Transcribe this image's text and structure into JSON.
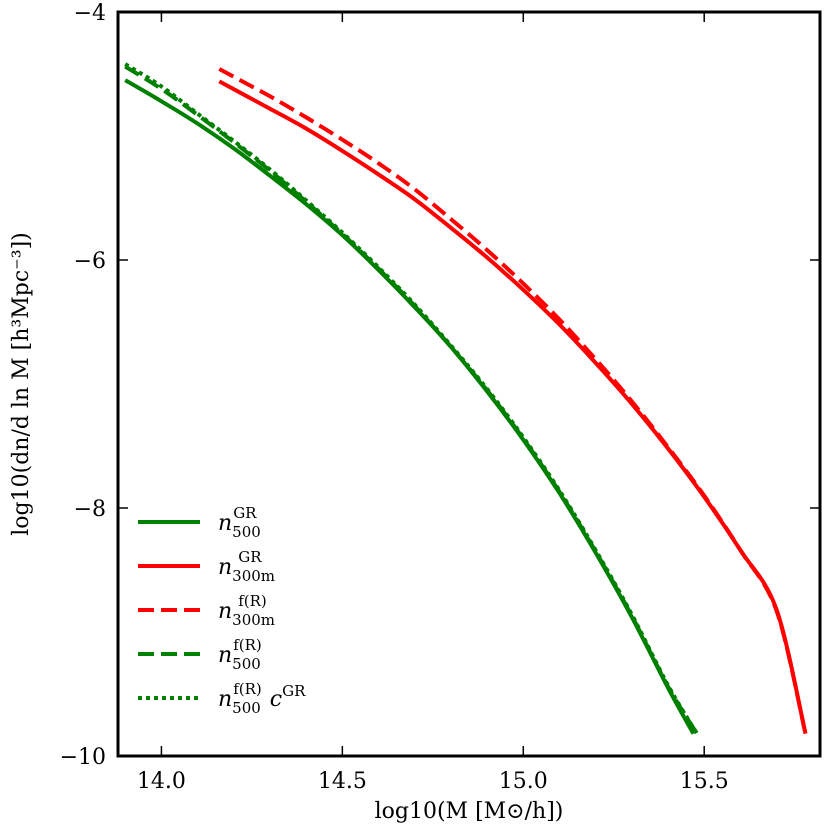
{
  "chart_data": {
    "type": "line",
    "title": "",
    "xlabel": "log10(M [M⊙/h])",
    "ylabel": "log10(dn/d ln M [h³Mpc⁻³])",
    "xlim": [
      13.88,
      15.82
    ],
    "ylim": [
      -10,
      -4
    ],
    "xticks": [
      14.0,
      14.5,
      15.0,
      15.5
    ],
    "xtick_labels": [
      "14.0",
      "14.5",
      "15.0",
      "15.5"
    ],
    "yticks": [
      -10,
      -8,
      -6,
      -4
    ],
    "ytick_labels": [
      "−10",
      "−8",
      "−6",
      "−4"
    ],
    "grid": false,
    "legend_position": "lower-left",
    "series": [
      {
        "name": "n_500^GR",
        "legend_base": "n",
        "legend_sup": "GR",
        "legend_sub": "500",
        "legend_tail": "",
        "legend_tail_sup": "",
        "color": "#008000",
        "dash": "solid",
        "x": [
          13.9,
          14.0,
          14.1,
          14.2,
          14.3,
          14.4,
          14.5,
          14.6,
          14.7,
          14.8,
          14.9,
          15.0,
          15.1,
          15.2,
          15.3,
          15.4,
          15.47
        ],
        "y": [
          -4.55,
          -4.72,
          -4.9,
          -5.1,
          -5.32,
          -5.55,
          -5.8,
          -6.08,
          -6.38,
          -6.7,
          -7.06,
          -7.45,
          -7.88,
          -8.36,
          -8.88,
          -9.45,
          -9.82
        ]
      },
      {
        "name": "n_300m^GR",
        "legend_base": "n",
        "legend_sup": "GR",
        "legend_sub": "300m",
        "legend_tail": "",
        "legend_tail_sup": "",
        "color": "#ff0000",
        "dash": "solid",
        "x": [
          14.16,
          14.3,
          14.4,
          14.5,
          14.6,
          14.7,
          14.8,
          14.9,
          15.0,
          15.1,
          15.2,
          15.3,
          15.4,
          15.5,
          15.6,
          15.7,
          15.78
        ],
        "y": [
          -4.56,
          -4.78,
          -4.94,
          -5.12,
          -5.31,
          -5.51,
          -5.74,
          -5.98,
          -6.24,
          -6.52,
          -6.83,
          -7.16,
          -7.52,
          -7.91,
          -8.34,
          -8.82,
          -9.82
        ]
      },
      {
        "name": "n_300m^f(R)",
        "legend_base": "n",
        "legend_sup": "f(R)",
        "legend_sub": "300m",
        "legend_tail": "",
        "legend_tail_sup": "",
        "color": "#ff0000",
        "dash": "dashed",
        "x": [
          14.16,
          14.3,
          14.4,
          14.5,
          14.6,
          14.7,
          14.8,
          14.9,
          15.0,
          15.1,
          15.2,
          15.3,
          15.4,
          15.5,
          15.6,
          15.7,
          15.78
        ],
        "y": [
          -4.46,
          -4.68,
          -4.85,
          -5.03,
          -5.22,
          -5.43,
          -5.67,
          -5.92,
          -6.19,
          -6.48,
          -6.8,
          -7.14,
          -7.51,
          -7.9,
          -8.34,
          -8.83,
          -9.82
        ]
      },
      {
        "name": "n_500^f(R)",
        "legend_base": "n",
        "legend_sup": "f(R)",
        "legend_sub": "500",
        "legend_tail": "",
        "legend_tail_sup": "",
        "color": "#008000",
        "dash": "dashed",
        "x": [
          13.9,
          14.0,
          14.1,
          14.2,
          14.3,
          14.4,
          14.5,
          14.6,
          14.7,
          14.8,
          14.9,
          15.0,
          15.1,
          15.2,
          15.3,
          15.4,
          15.48
        ],
        "y": [
          -4.44,
          -4.62,
          -4.83,
          -5.05,
          -5.28,
          -5.53,
          -5.79,
          -6.07,
          -6.37,
          -6.7,
          -7.05,
          -7.44,
          -7.87,
          -8.35,
          -8.87,
          -9.44,
          -9.82
        ]
      },
      {
        "name": "n_500^f(R) c^GR",
        "legend_base": "n",
        "legend_sup": "f(R)",
        "legend_sub": "500",
        "legend_tail": "c",
        "legend_tail_sup": "GR",
        "color": "#008000",
        "dash": "dotted",
        "x": [
          13.9,
          14.0,
          14.1,
          14.2,
          14.3,
          14.4,
          14.5,
          14.6,
          14.7,
          14.8,
          14.9,
          15.0,
          15.1,
          15.2,
          15.3,
          15.4,
          15.48
        ],
        "y": [
          -4.42,
          -4.6,
          -4.82,
          -5.04,
          -5.27,
          -5.52,
          -5.78,
          -6.06,
          -6.36,
          -6.69,
          -7.04,
          -7.43,
          -7.86,
          -8.34,
          -8.86,
          -9.43,
          -9.82
        ]
      }
    ]
  }
}
